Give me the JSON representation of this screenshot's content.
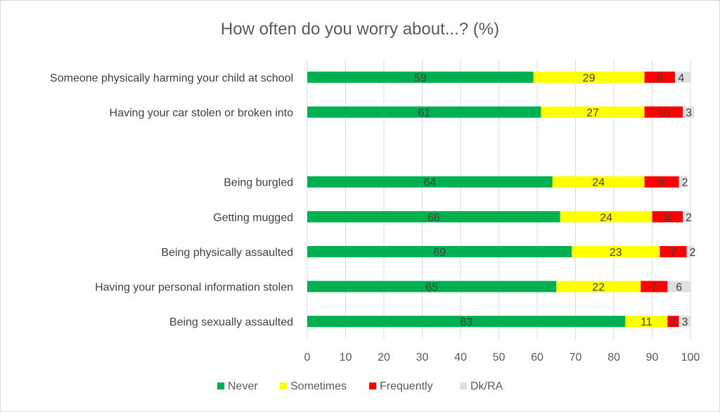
{
  "chart_data": {
    "type": "bar",
    "orientation": "horizontal",
    "stacked": true,
    "title": "How often do you worry about...? (%)",
    "categories": [
      "Someone physically harming your child at school",
      "Having your car stolen or broken into",
      "",
      "Being burgled",
      "Getting mugged",
      "Being physically assaulted",
      "Having your personal information stolen",
      "Being sexually assaulted"
    ],
    "series": [
      {
        "name": "Never",
        "color": "#00b050",
        "values": [
          59,
          61,
          null,
          64,
          66,
          69,
          65,
          83
        ]
      },
      {
        "name": "Sometimes",
        "color": "#ffff00",
        "values": [
          29,
          27,
          null,
          24,
          24,
          23,
          22,
          11
        ]
      },
      {
        "name": "Frequently",
        "color": "#ff0000",
        "values": [
          8,
          10,
          null,
          9,
          8,
          7,
          7,
          3
        ]
      },
      {
        "name": "Dk/RA",
        "color": "#e0e0e0",
        "values": [
          4,
          3,
          null,
          2,
          2,
          2,
          6,
          3
        ]
      }
    ],
    "xlim": [
      0,
      100
    ],
    "xticks": [
      "0",
      "10",
      "20",
      "30",
      "40",
      "50",
      "60",
      "70",
      "80",
      "90",
      "100"
    ],
    "grid": true,
    "legend": "bottom"
  }
}
